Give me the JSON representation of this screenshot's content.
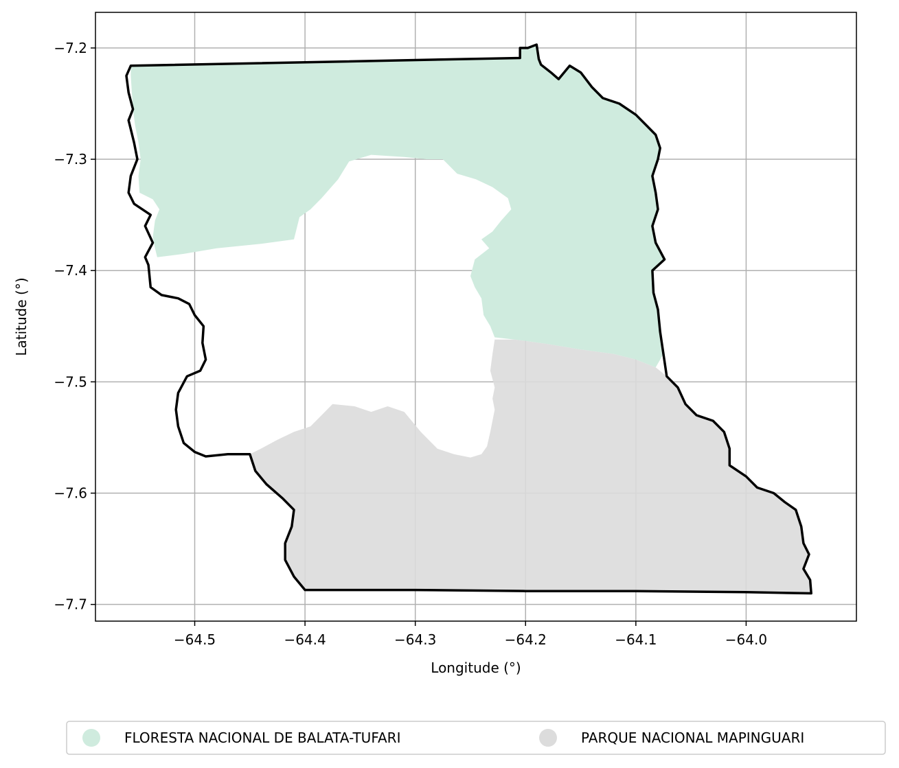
{
  "chart_data": {
    "type": "map",
    "xlabel": "Longitude (°)",
    "ylabel": "Latitude (°)",
    "xlim": [
      -64.59,
      -63.9
    ],
    "ylim": [
      -7.715,
      -7.168
    ],
    "grid": true,
    "x_ticks": [
      {
        "value": -64.5,
        "label": "−64.5"
      },
      {
        "value": -64.4,
        "label": "−64.4"
      },
      {
        "value": -64.3,
        "label": "−64.3"
      },
      {
        "value": -64.2,
        "label": "−64.2"
      },
      {
        "value": -64.1,
        "label": "−64.1"
      },
      {
        "value": -64.0,
        "label": "−64.0"
      }
    ],
    "y_ticks": [
      {
        "value": -7.2,
        "label": "−7.2"
      },
      {
        "value": -7.3,
        "label": "−7.3"
      },
      {
        "value": -7.4,
        "label": "−7.4"
      },
      {
        "value": -7.5,
        "label": "−7.5"
      },
      {
        "value": -7.6,
        "label": "−7.6"
      },
      {
        "value": -7.7,
        "label": "−7.7"
      }
    ],
    "legend_position": "bottom-center",
    "series": [
      {
        "name": "FLORESTA NACIONAL DE BALATA-TUFARI",
        "color": "#cfebde",
        "polygons": [
          [
            [
              -64.558,
              -7.216
            ],
            [
              -64.205,
              -7.209
            ],
            [
              -64.205,
              -7.2
            ],
            [
              -64.198,
              -7.2
            ],
            [
              -64.19,
              -7.197
            ],
            [
              -64.188,
              -7.21
            ],
            [
              -64.186,
              -7.215
            ],
            [
              -64.177,
              -7.222
            ],
            [
              -64.17,
              -7.228
            ],
            [
              -64.16,
              -7.216
            ],
            [
              -64.15,
              -7.222
            ],
            [
              -64.14,
              -7.235
            ],
            [
              -64.13,
              -7.245
            ],
            [
              -64.115,
              -7.25
            ],
            [
              -64.1,
              -7.26
            ],
            [
              -64.09,
              -7.27
            ],
            [
              -64.082,
              -7.278
            ],
            [
              -64.078,
              -7.29
            ],
            [
              -64.08,
              -7.3
            ],
            [
              -64.085,
              -7.315
            ],
            [
              -64.082,
              -7.33
            ],
            [
              -64.08,
              -7.345
            ],
            [
              -64.085,
              -7.36
            ],
            [
              -64.082,
              -7.375
            ],
            [
              -64.074,
              -7.39
            ],
            [
              -64.085,
              -7.4
            ],
            [
              -64.084,
              -7.42
            ],
            [
              -64.08,
              -7.435
            ],
            [
              -64.078,
              -7.455
            ],
            [
              -64.075,
              -7.475
            ],
            [
              -64.082,
              -7.487
            ],
            [
              -64.1,
              -7.48
            ],
            [
              -64.12,
              -7.475
            ],
            [
              -64.15,
              -7.471
            ],
            [
              -64.18,
              -7.466
            ],
            [
              -64.21,
              -7.462
            ],
            [
              -64.228,
              -7.46
            ],
            [
              -64.232,
              -7.45
            ],
            [
              -64.238,
              -7.44
            ],
            [
              -64.24,
              -7.425
            ],
            [
              -64.246,
              -7.415
            ],
            [
              -64.25,
              -7.405
            ],
            [
              -64.246,
              -7.39
            ],
            [
              -64.233,
              -7.38
            ],
            [
              -64.24,
              -7.372
            ],
            [
              -64.23,
              -7.365
            ],
            [
              -64.222,
              -7.355
            ],
            [
              -64.213,
              -7.345
            ],
            [
              -64.216,
              -7.335
            ],
            [
              -64.23,
              -7.325
            ],
            [
              -64.245,
              -7.318
            ],
            [
              -64.262,
              -7.313
            ],
            [
              -64.275,
              -7.3
            ],
            [
              -64.29,
              -7.3
            ],
            [
              -64.31,
              -7.298
            ],
            [
              -64.34,
              -7.296
            ],
            [
              -64.36,
              -7.302
            ],
            [
              -64.37,
              -7.318
            ],
            [
              -64.385,
              -7.335
            ],
            [
              -64.395,
              -7.345
            ],
            [
              -64.405,
              -7.352
            ],
            [
              -64.41,
              -7.372
            ],
            [
              -64.44,
              -7.376
            ],
            [
              -64.48,
              -7.38
            ],
            [
              -64.51,
              -7.385
            ],
            [
              -64.534,
              -7.388
            ],
            [
              -64.536,
              -7.38
            ],
            [
              -64.538,
              -7.37
            ],
            [
              -64.536,
              -7.355
            ],
            [
              -64.532,
              -7.345
            ],
            [
              -64.538,
              -7.336
            ],
            [
              -64.55,
              -7.33
            ],
            [
              -64.551,
              -7.315
            ],
            [
              -64.549,
              -7.3
            ],
            [
              -64.551,
              -7.285
            ],
            [
              -64.554,
              -7.27
            ],
            [
              -64.556,
              -7.255
            ],
            [
              -64.557,
              -7.24
            ],
            [
              -64.558,
              -7.225
            ]
          ]
        ]
      },
      {
        "name": "PARQUE NACIONAL MAPINGUARI",
        "color": "#dcdcdc",
        "polygons": [
          [
            [
              -64.45,
              -7.565
            ],
            [
              -64.44,
              -7.56
            ],
            [
              -64.425,
              -7.552
            ],
            [
              -64.41,
              -7.545
            ],
            [
              -64.395,
              -7.54
            ],
            [
              -64.385,
              -7.53
            ],
            [
              -64.375,
              -7.52
            ],
            [
              -64.355,
              -7.522
            ],
            [
              -64.34,
              -7.527
            ],
            [
              -64.325,
              -7.522
            ],
            [
              -64.31,
              -7.527
            ],
            [
              -64.295,
              -7.545
            ],
            [
              -64.28,
              -7.56
            ],
            [
              -64.265,
              -7.565
            ],
            [
              -64.25,
              -7.568
            ],
            [
              -64.24,
              -7.565
            ],
            [
              -64.235,
              -7.558
            ],
            [
              -64.232,
              -7.545
            ],
            [
              -64.23,
              -7.535
            ],
            [
              -64.228,
              -7.525
            ],
            [
              -64.23,
              -7.515
            ],
            [
              -64.228,
              -7.505
            ],
            [
              -64.232,
              -7.49
            ],
            [
              -64.23,
              -7.475
            ],
            [
              -64.228,
              -7.462
            ],
            [
              -64.21,
              -7.462
            ],
            [
              -64.18,
              -7.466
            ],
            [
              -64.15,
              -7.471
            ],
            [
              -64.12,
              -7.475
            ],
            [
              -64.1,
              -7.48
            ],
            [
              -64.082,
              -7.487
            ],
            [
              -64.072,
              -7.495
            ],
            [
              -64.062,
              -7.505
            ],
            [
              -64.055,
              -7.52
            ],
            [
              -64.045,
              -7.53
            ],
            [
              -64.03,
              -7.535
            ],
            [
              -64.02,
              -7.545
            ],
            [
              -64.015,
              -7.56
            ],
            [
              -64.015,
              -7.575
            ],
            [
              -64.0,
              -7.585
            ],
            [
              -63.99,
              -7.595
            ],
            [
              -63.975,
              -7.6
            ],
            [
              -63.965,
              -7.608
            ],
            [
              -63.955,
              -7.615
            ],
            [
              -63.95,
              -7.63
            ],
            [
              -63.948,
              -7.645
            ],
            [
              -63.943,
              -7.655
            ],
            [
              -63.948,
              -7.668
            ],
            [
              -63.942,
              -7.678
            ],
            [
              -63.941,
              -7.69
            ],
            [
              -64.0,
              -7.689
            ],
            [
              -64.1,
              -7.688
            ],
            [
              -64.2,
              -7.688
            ],
            [
              -64.3,
              -7.687
            ],
            [
              -64.4,
              -7.687
            ],
            [
              -64.41,
              -7.675
            ],
            [
              -64.418,
              -7.66
            ],
            [
              -64.418,
              -7.645
            ],
            [
              -64.412,
              -7.63
            ],
            [
              -64.41,
              -7.615
            ],
            [
              -64.42,
              -7.605
            ],
            [
              -64.435,
              -7.592
            ],
            [
              -64.445,
              -7.58
            ]
          ]
        ]
      }
    ],
    "boundary": {
      "color": "#000000",
      "points": [
        [
          -64.558,
          -7.216
        ],
        [
          -64.205,
          -7.209
        ],
        [
          -64.205,
          -7.2
        ],
        [
          -64.198,
          -7.2
        ],
        [
          -64.19,
          -7.197
        ],
        [
          -64.188,
          -7.21
        ],
        [
          -64.186,
          -7.215
        ],
        [
          -64.177,
          -7.222
        ],
        [
          -64.17,
          -7.228
        ],
        [
          -64.16,
          -7.216
        ],
        [
          -64.15,
          -7.222
        ],
        [
          -64.14,
          -7.235
        ],
        [
          -64.13,
          -7.245
        ],
        [
          -64.115,
          -7.25
        ],
        [
          -64.1,
          -7.26
        ],
        [
          -64.09,
          -7.27
        ],
        [
          -64.082,
          -7.278
        ],
        [
          -64.078,
          -7.29
        ],
        [
          -64.08,
          -7.3
        ],
        [
          -64.085,
          -7.315
        ],
        [
          -64.082,
          -7.33
        ],
        [
          -64.08,
          -7.345
        ],
        [
          -64.085,
          -7.36
        ],
        [
          -64.082,
          -7.375
        ],
        [
          -64.074,
          -7.39
        ],
        [
          -64.085,
          -7.4
        ],
        [
          -64.084,
          -7.42
        ],
        [
          -64.08,
          -7.435
        ],
        [
          -64.078,
          -7.455
        ],
        [
          -64.075,
          -7.475
        ],
        [
          -64.072,
          -7.495
        ],
        [
          -64.062,
          -7.505
        ],
        [
          -64.055,
          -7.52
        ],
        [
          -64.045,
          -7.53
        ],
        [
          -64.03,
          -7.535
        ],
        [
          -64.02,
          -7.545
        ],
        [
          -64.015,
          -7.56
        ],
        [
          -64.015,
          -7.575
        ],
        [
          -64.0,
          -7.585
        ],
        [
          -63.99,
          -7.595
        ],
        [
          -63.975,
          -7.6
        ],
        [
          -63.965,
          -7.608
        ],
        [
          -63.955,
          -7.615
        ],
        [
          -63.95,
          -7.63
        ],
        [
          -63.948,
          -7.645
        ],
        [
          -63.943,
          -7.655
        ],
        [
          -63.948,
          -7.668
        ],
        [
          -63.942,
          -7.678
        ],
        [
          -63.941,
          -7.69
        ],
        [
          -64.0,
          -7.689
        ],
        [
          -64.1,
          -7.688
        ],
        [
          -64.2,
          -7.688
        ],
        [
          -64.3,
          -7.687
        ],
        [
          -64.4,
          -7.687
        ],
        [
          -64.41,
          -7.675
        ],
        [
          -64.418,
          -7.66
        ],
        [
          -64.418,
          -7.645
        ],
        [
          -64.412,
          -7.63
        ],
        [
          -64.41,
          -7.615
        ],
        [
          -64.42,
          -7.605
        ],
        [
          -64.435,
          -7.592
        ],
        [
          -64.445,
          -7.58
        ],
        [
          -64.45,
          -7.565
        ],
        [
          -64.47,
          -7.565
        ],
        [
          -64.49,
          -7.567
        ],
        [
          -64.5,
          -7.563
        ],
        [
          -64.51,
          -7.555
        ],
        [
          -64.515,
          -7.54
        ],
        [
          -64.517,
          -7.525
        ],
        [
          -64.515,
          -7.51
        ],
        [
          -64.507,
          -7.495
        ],
        [
          -64.495,
          -7.49
        ],
        [
          -64.49,
          -7.48
        ],
        [
          -64.493,
          -7.465
        ],
        [
          -64.492,
          -7.45
        ],
        [
          -64.5,
          -7.44
        ],
        [
          -64.505,
          -7.43
        ],
        [
          -64.515,
          -7.425
        ],
        [
          -64.53,
          -7.422
        ],
        [
          -64.54,
          -7.415
        ],
        [
          -64.542,
          -7.395
        ],
        [
          -64.545,
          -7.388
        ],
        [
          -64.538,
          -7.375
        ],
        [
          -64.545,
          -7.36
        ],
        [
          -64.54,
          -7.35
        ],
        [
          -64.555,
          -7.34
        ],
        [
          -64.56,
          -7.33
        ],
        [
          -64.558,
          -7.315
        ],
        [
          -64.552,
          -7.3
        ],
        [
          -64.555,
          -7.285
        ],
        [
          -64.56,
          -7.265
        ],
        [
          -64.556,
          -7.255
        ],
        [
          -64.56,
          -7.24
        ],
        [
          -64.562,
          -7.225
        ],
        [
          -64.558,
          -7.216
        ]
      ]
    }
  }
}
